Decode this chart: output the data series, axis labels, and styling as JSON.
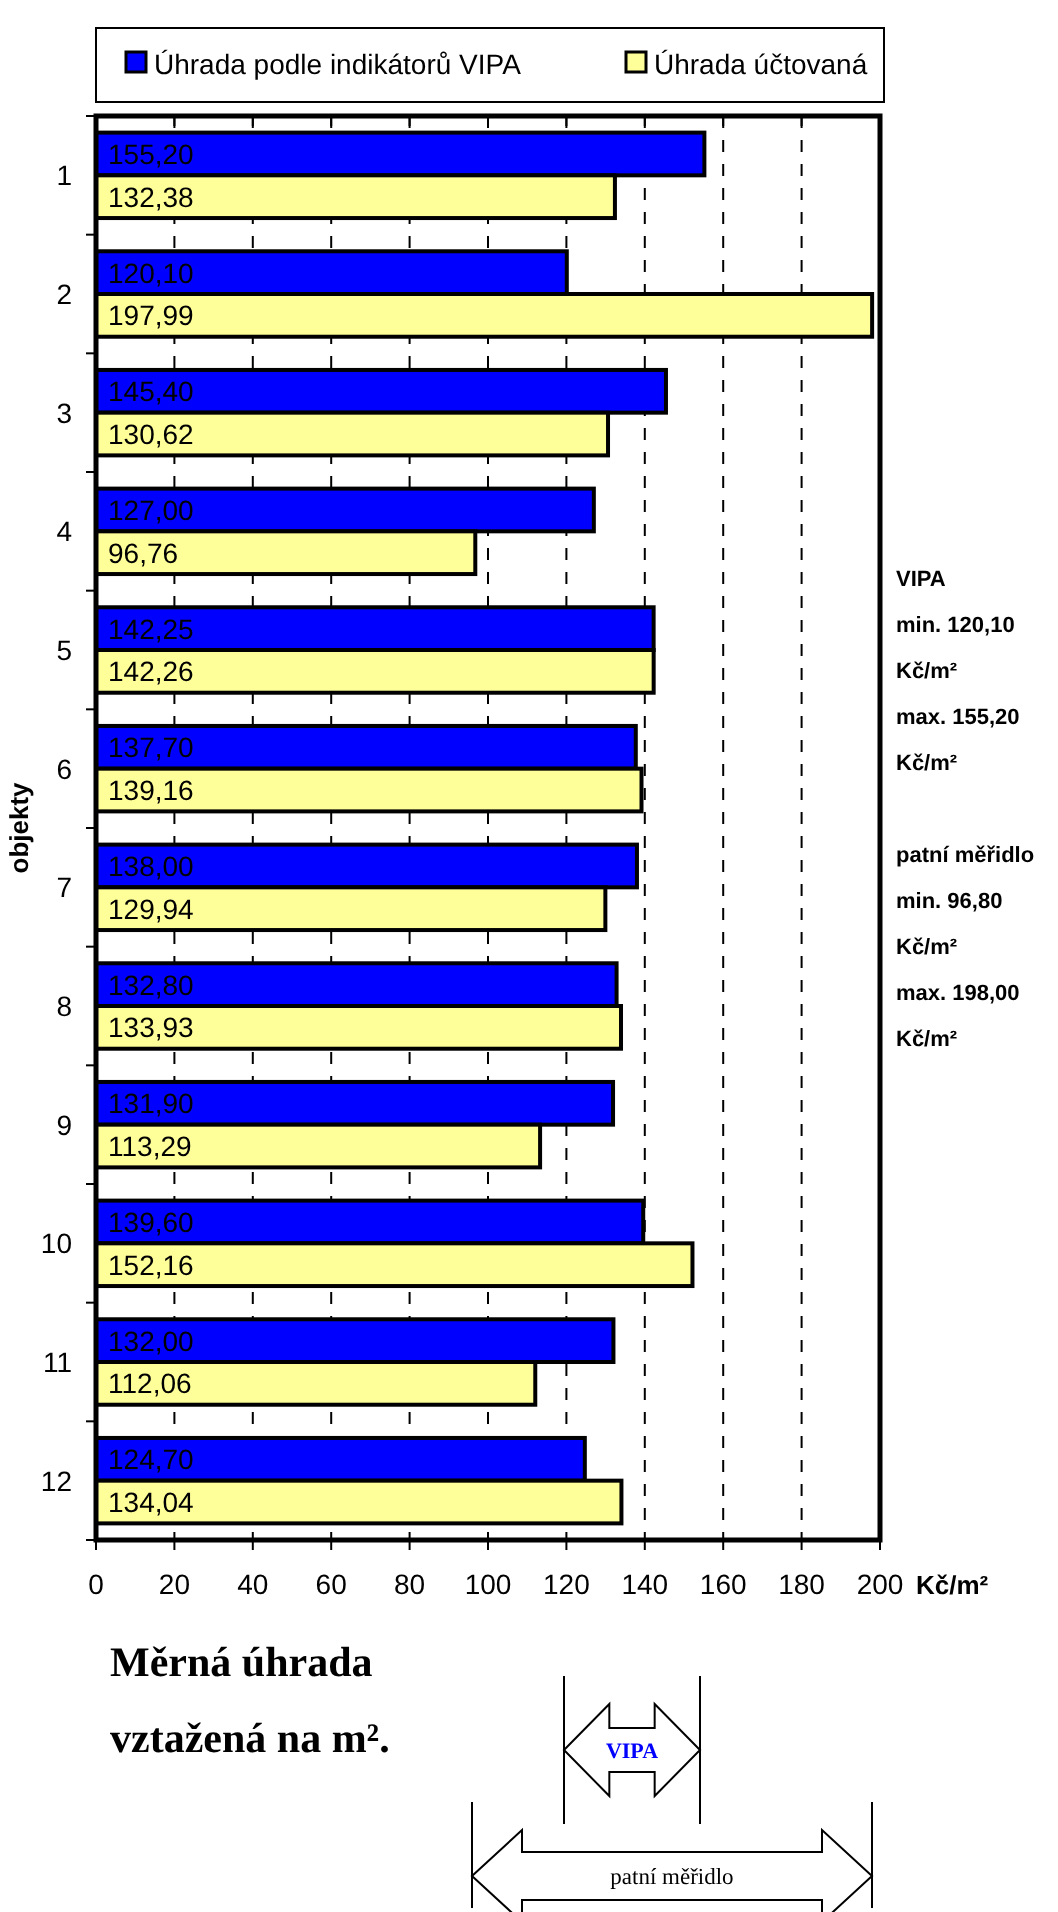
{
  "chart_data": {
    "type": "bar",
    "orientation": "horizontal",
    "title": "Měrná úhrada vztažená na m².",
    "ylabel": "objekty",
    "xlabel": "Kč/m²",
    "categories": [
      "1",
      "2",
      "3",
      "4",
      "5",
      "6",
      "7",
      "8",
      "9",
      "10",
      "11",
      "12"
    ],
    "series": [
      {
        "name": "Úhrada podle indikátorů VIPA",
        "color": "#0000ff",
        "values": [
          155.2,
          120.1,
          145.4,
          127.0,
          142.25,
          137.7,
          138.0,
          132.8,
          131.9,
          139.6,
          132.0,
          124.7
        ],
        "value_labels": [
          "155,20",
          "120,10",
          "145,40",
          "127,00",
          "142,25",
          "137,70",
          "138,00",
          "132,80",
          "131,90",
          "139,60",
          "132,00",
          "124,70"
        ]
      },
      {
        "name": "Úhrada účtovaná",
        "color": "#ffff99",
        "values": [
          132.38,
          197.99,
          130.62,
          96.76,
          142.26,
          139.16,
          129.94,
          133.93,
          113.29,
          152.16,
          112.06,
          134.04
        ],
        "value_labels": [
          "132,38",
          "197,99",
          "130,62",
          "96,76",
          "142,26",
          "139,16",
          "129,94",
          "133,93",
          "113,29",
          "152,16",
          "112,06",
          "134,04"
        ]
      }
    ],
    "xlim": [
      0,
      200
    ],
    "xticks": [
      0,
      20,
      40,
      60,
      80,
      100,
      120,
      140,
      160,
      180,
      200
    ],
    "grid": "x",
    "legend": "top",
    "annotations": [
      "VIPA",
      "min.  120,10",
      "Kč/m²",
      "max.  155,20",
      "Kč/m²",
      "patní měřidlo",
      "min.  96,80",
      "Kč/m²",
      "max.  198,00",
      "Kč/m²",
      "VIPA",
      "patní měřidlo"
    ]
  }
}
